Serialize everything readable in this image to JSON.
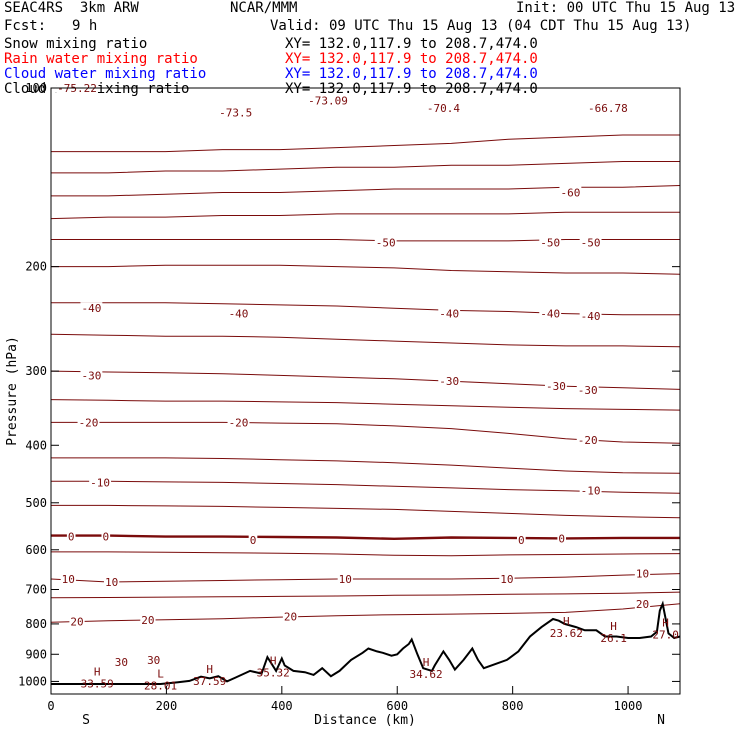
{
  "header": {
    "model": "SEAC4RS  3km ARW",
    "org": "NCAR/MMM",
    "init": "Init: 00 UTC Thu 15 Aug 13",
    "fcst_label": "Fcst:",
    "fcst_value": "9 h",
    "valid": "Valid: 09 UTC Thu 15 Aug 13 (04 CDT Thu 15 Aug 13)"
  },
  "fields": [
    {
      "name": "Snow mixing ratio",
      "xy": "XY= 132.0,117.9 to 208.7,474.0",
      "color": "#000000"
    },
    {
      "name": "Rain water mixing ratio",
      "xy": "XY= 132.0,117.9 to 208.7,474.0",
      "color": "#ff0000"
    },
    {
      "name": "Cloud water mixing ratio",
      "xy": "XY= 132.0,117.9 to 208.7,474.0",
      "color": "#0000ff"
    },
    {
      "name": "Cloud ice mixing ratio",
      "xy": "XY= 132.0,117.9 to 208.7,474.0",
      "color": "#000000"
    }
  ],
  "colors": {
    "contour": "#7a0b0b",
    "terrain": "#000000",
    "frame": "#000000"
  },
  "chart_data": {
    "type": "line",
    "title": "",
    "xlabel": "Distance (km)",
    "ylabel": "Pressure (hPa)",
    "xlim": [
      0,
      1090
    ],
    "ylim": [
      1050,
      100
    ],
    "y_scale": "log",
    "x_ticks": [
      0,
      200,
      400,
      600,
      800,
      1000
    ],
    "y_ticks": [
      100,
      200,
      300,
      400,
      500,
      600,
      700,
      800,
      900,
      1000
    ],
    "end_labels": {
      "left": "S",
      "right": "N"
    },
    "contour_interval_c": 5,
    "contour_labels": [
      {
        "text": "-75.22",
        "x": 45,
        "p": 100
      },
      {
        "text": "-73.5",
        "x": 320,
        "p": 110
      },
      {
        "text": "-73.09",
        "x": 480,
        "p": 105
      },
      {
        "text": "-70.4",
        "x": 680,
        "p": 108
      },
      {
        "text": "-66.78",
        "x": 965,
        "p": 108
      },
      {
        "text": "-60",
        "x": 900,
        "p": 150
      },
      {
        "text": "-50",
        "x": 580,
        "p": 182
      },
      {
        "text": "-50",
        "x": 865,
        "p": 182
      },
      {
        "text": "-50",
        "x": 935,
        "p": 182
      },
      {
        "text": "-40",
        "x": 70,
        "p": 235
      },
      {
        "text": "-40",
        "x": 325,
        "p": 240
      },
      {
        "text": "-40",
        "x": 690,
        "p": 240
      },
      {
        "text": "-40",
        "x": 865,
        "p": 240
      },
      {
        "text": "-40",
        "x": 935,
        "p": 242
      },
      {
        "text": "-30",
        "x": 70,
        "p": 305
      },
      {
        "text": "-30",
        "x": 690,
        "p": 312
      },
      {
        "text": "-30",
        "x": 875,
        "p": 318
      },
      {
        "text": "-30",
        "x": 930,
        "p": 323
      },
      {
        "text": "-20",
        "x": 65,
        "p": 366
      },
      {
        "text": "-20",
        "x": 325,
        "p": 366
      },
      {
        "text": "-20",
        "x": 930,
        "p": 392
      },
      {
        "text": "-10",
        "x": 85,
        "p": 462
      },
      {
        "text": "-10",
        "x": 935,
        "p": 477
      },
      {
        "text": "0",
        "x": 35,
        "p": 570
      },
      {
        "text": "0",
        "x": 95,
        "p": 570
      },
      {
        "text": "0",
        "x": 350,
        "p": 578
      },
      {
        "text": "0",
        "x": 815,
        "p": 578
      },
      {
        "text": "0",
        "x": 885,
        "p": 574
      },
      {
        "text": "10",
        "x": 30,
        "p": 672
      },
      {
        "text": "10",
        "x": 105,
        "p": 680
      },
      {
        "text": "10",
        "x": 510,
        "p": 672
      },
      {
        "text": "10",
        "x": 790,
        "p": 672
      },
      {
        "text": "10",
        "x": 1025,
        "p": 658
      },
      {
        "text": "20",
        "x": 45,
        "p": 792
      },
      {
        "text": "20",
        "x": 168,
        "p": 788
      },
      {
        "text": "20",
        "x": 415,
        "p": 778
      },
      {
        "text": "20",
        "x": 1025,
        "p": 740
      },
      {
        "text": "30",
        "x": 122,
        "p": 927
      },
      {
        "text": "30",
        "x": 178,
        "p": 920
      }
    ],
    "extrema": [
      {
        "type": "H",
        "value": "33.59",
        "x": 80,
        "p": 985
      },
      {
        "type": "L",
        "value": "28.01",
        "x": 190,
        "p": 993
      },
      {
        "type": "H",
        "value": "37.59",
        "x": 275,
        "p": 975
      },
      {
        "type": "H",
        "value": "35.32",
        "x": 385,
        "p": 943
      },
      {
        "type": "H",
        "value": "34.62",
        "x": 650,
        "p": 950
      },
      {
        "type": "H",
        "value": "23.62",
        "x": 893,
        "p": 810
      },
      {
        "type": "H",
        "value": "26.1",
        "x": 975,
        "p": 825
      },
      {
        "type": "H",
        "value": "27.0",
        "x": 1065,
        "p": 815
      }
    ],
    "terrain": {
      "x": [
        0,
        100,
        190,
        220,
        240,
        260,
        275,
        290,
        305,
        320,
        345,
        365,
        375,
        390,
        400,
        405,
        420,
        440,
        455,
        470,
        485,
        500,
        520,
        540,
        550,
        565,
        575,
        590,
        600,
        610,
        620,
        625,
        635,
        645,
        660,
        665,
        680,
        690,
        700,
        715,
        730,
        740,
        750,
        770,
        790,
        810,
        830,
        850,
        870,
        880,
        890,
        910,
        925,
        945,
        960,
        980,
        1000,
        1020,
        1040,
        1050,
        1055,
        1060,
        1070,
        1080,
        1090
      ],
      "p": [
        1010,
        1010,
        1010,
        1003,
        998,
        982,
        988,
        980,
        1000,
        985,
        960,
        970,
        910,
        960,
        915,
        940,
        960,
        965,
        975,
        950,
        980,
        960,
        920,
        895,
        880,
        890,
        895,
        905,
        900,
        880,
        865,
        850,
        900,
        950,
        960,
        940,
        890,
        920,
        955,
        920,
        880,
        920,
        950,
        935,
        920,
        890,
        840,
        810,
        785,
        790,
        800,
        810,
        820,
        820,
        840,
        840,
        845,
        845,
        840,
        825,
        760,
        740,
        830,
        845,
        840
      ]
    },
    "contours": [
      {
        "level": -70,
        "p": [
          128,
          128,
          128,
          127,
          127,
          126,
          125,
          124,
          122,
          121,
          120,
          120
        ]
      },
      {
        "level": -65,
        "p": [
          139,
          139,
          138,
          138,
          137,
          136,
          136,
          135,
          135,
          134,
          133,
          133
        ]
      },
      {
        "level": -60,
        "p": [
          152,
          152,
          151,
          150,
          150,
          149,
          148,
          148,
          148,
          147,
          147,
          146
        ]
      },
      {
        "level": -55,
        "p": [
          166,
          165,
          165,
          164,
          164,
          163,
          163,
          163,
          163,
          162,
          162,
          162
        ]
      },
      {
        "level": -50,
        "p": [
          180,
          180,
          180,
          180,
          180,
          180,
          181,
          181,
          181,
          180,
          180,
          180
        ]
      },
      {
        "level": -45,
        "p": [
          200,
          200,
          199,
          199,
          199,
          200,
          201,
          203,
          204,
          205,
          205,
          206
        ]
      },
      {
        "level": -40,
        "p": [
          230,
          230,
          230,
          231,
          232,
          233,
          235,
          237,
          238,
          240,
          241,
          241
        ]
      },
      {
        "level": -35,
        "p": [
          260,
          261,
          262,
          262,
          263,
          265,
          267,
          269,
          271,
          272,
          272,
          273
        ]
      },
      {
        "level": -30,
        "p": [
          300,
          301,
          302,
          303,
          305,
          307,
          309,
          312,
          315,
          318,
          320,
          322
        ]
      },
      {
        "level": -25,
        "p": [
          335,
          336,
          337,
          337,
          338,
          339,
          341,
          343,
          345,
          347,
          348,
          349
        ]
      },
      {
        "level": -20,
        "p": [
          366,
          366,
          366,
          366,
          367,
          368,
          371,
          375,
          382,
          390,
          395,
          397
        ]
      },
      {
        "level": -15,
        "p": [
          420,
          420,
          420,
          421,
          423,
          425,
          428,
          432,
          437,
          442,
          445,
          446
        ]
      },
      {
        "level": -10,
        "p": [
          460,
          460,
          461,
          462,
          464,
          466,
          469,
          472,
          475,
          477,
          480,
          482
        ]
      },
      {
        "level": -5,
        "p": [
          505,
          505,
          506,
          507,
          509,
          511,
          513,
          517,
          521,
          525,
          528,
          530
        ]
      },
      {
        "level": 0,
        "p": [
          568,
          568,
          570,
          570,
          571,
          572,
          575,
          572,
          573,
          574,
          573,
          573
        ]
      },
      {
        "level": 5,
        "p": [
          605,
          605,
          606,
          607,
          608,
          610,
          613,
          614,
          612,
          611,
          610,
          609
        ]
      },
      {
        "level": 10,
        "p": [
          672,
          680,
          678,
          676,
          674,
          672,
          672,
          672,
          670,
          667,
          662,
          658
        ]
      },
      {
        "level": 15,
        "p": [
          723,
          722,
          721,
          720,
          719,
          718,
          716,
          715,
          713,
          712,
          710,
          707
        ]
      },
      {
        "level": 20,
        "p": [
          795,
          790,
          787,
          784,
          779,
          775,
          772,
          770,
          768,
          765,
          755,
          740
        ]
      }
    ]
  }
}
